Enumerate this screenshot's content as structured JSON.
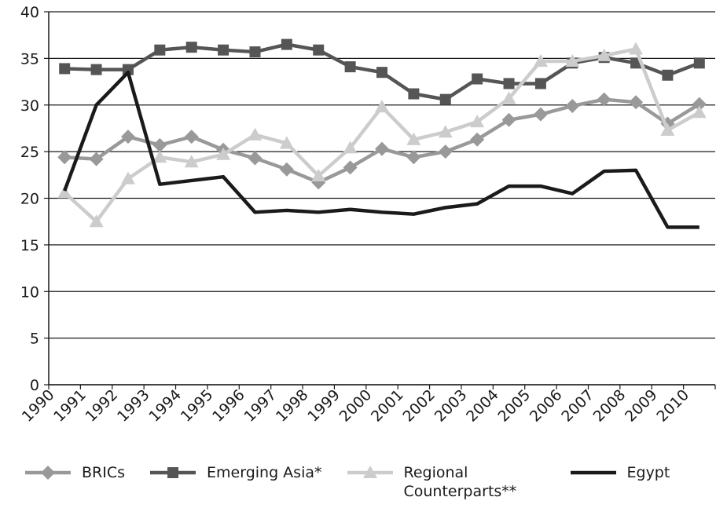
{
  "chart_data": {
    "type": "line",
    "categories": [
      "1990",
      "1991",
      "1992",
      "1993",
      "1994",
      "1995",
      "1996",
      "1997",
      "1998",
      "1999",
      "2000",
      "2001",
      "2002",
      "2003",
      "2004",
      "2005",
      "2006",
      "2007",
      "2008",
      "2009",
      "2010"
    ],
    "ylim": [
      0,
      40
    ],
    "yticks": [
      0,
      5,
      10,
      15,
      20,
      25,
      30,
      35,
      40
    ],
    "grid": true,
    "series": [
      {
        "name": "BRICs",
        "color": "#999999",
        "marker": "diamond",
        "values": [
          24.4,
          24.2,
          26.6,
          25.7,
          26.6,
          25.2,
          24.3,
          23.1,
          21.7,
          23.3,
          25.3,
          24.4,
          25.0,
          26.3,
          28.4,
          29.0,
          29.9,
          30.6,
          30.3,
          28.0,
          30.1
        ]
      },
      {
        "name": "Emerging Asia*",
        "color": "#555555",
        "marker": "square",
        "values": [
          33.9,
          33.8,
          33.8,
          35.9,
          36.2,
          35.9,
          35.7,
          36.5,
          35.9,
          34.1,
          33.5,
          31.2,
          30.6,
          32.8,
          32.3,
          32.3,
          34.5,
          35.1,
          34.5,
          33.2,
          34.5
        ]
      },
      {
        "name": "Regional Counterparts**",
        "color": "#cccccc",
        "marker": "triangle",
        "values": [
          20.6,
          17.5,
          22.1,
          24.4,
          23.9,
          24.7,
          26.8,
          25.9,
          22.4,
          25.4,
          29.8,
          26.3,
          27.1,
          28.2,
          30.7,
          34.7,
          34.7,
          35.3,
          36.0,
          27.3,
          29.2
        ]
      },
      {
        "name": "Egypt",
        "color": "#1a1a1a",
        "marker": "none",
        "values": [
          20.8,
          30.0,
          33.5,
          21.5,
          21.9,
          22.3,
          18.5,
          18.7,
          18.5,
          18.8,
          18.5,
          18.3,
          19.0,
          19.4,
          21.3,
          21.3,
          20.5,
          22.9,
          23.0,
          16.9,
          16.9
        ]
      }
    ]
  }
}
